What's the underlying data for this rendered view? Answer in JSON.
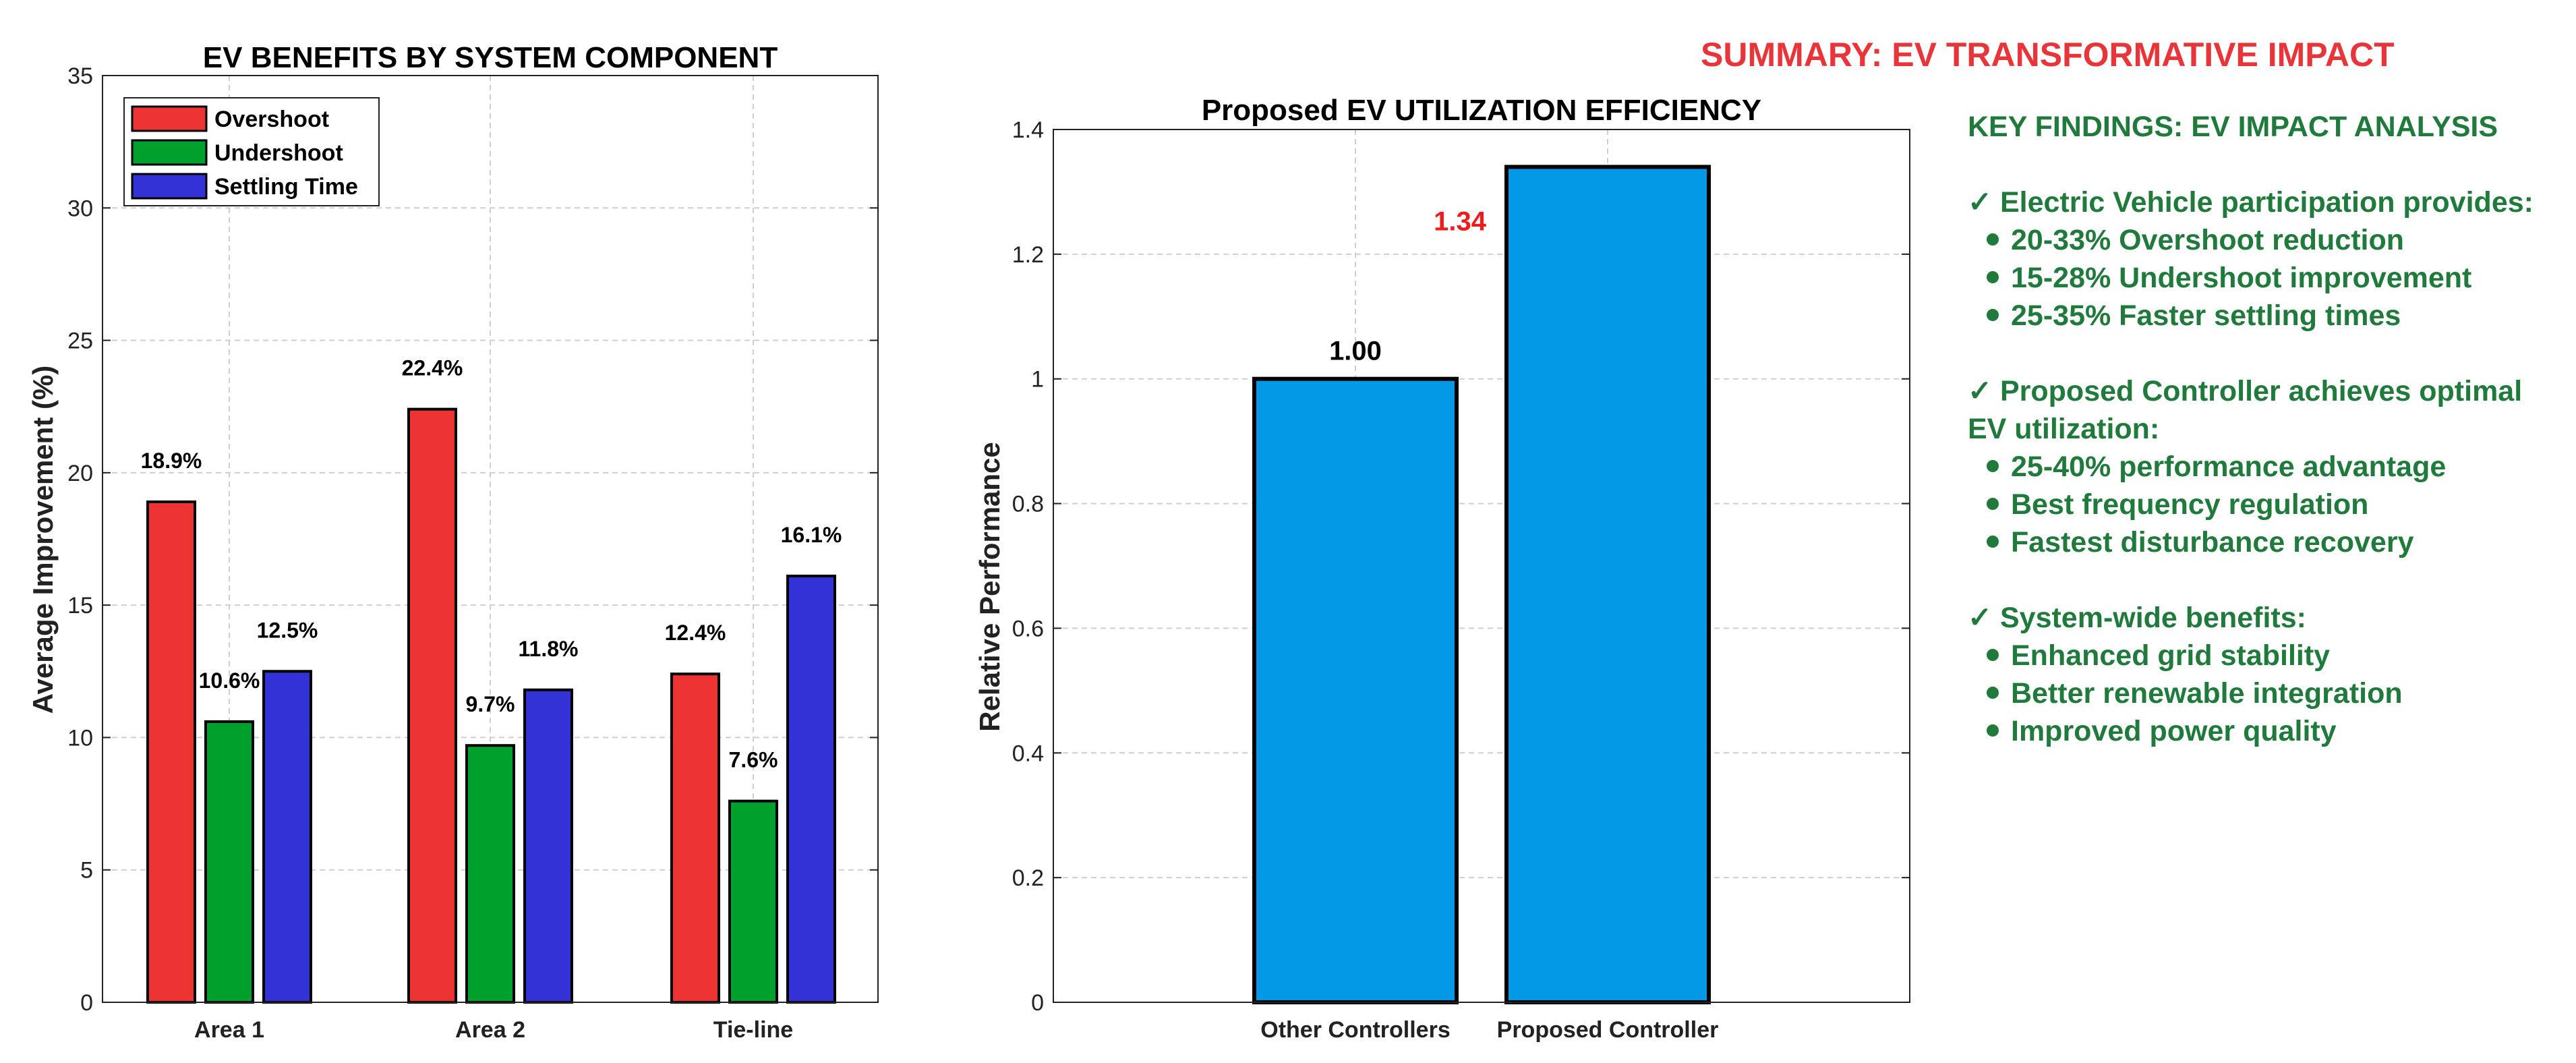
{
  "colors": {
    "overshoot": "#ee3333",
    "undershoot": "#00a02c",
    "settling": "#3232d6",
    "ev_bar": "#0499e6",
    "summary_red": "#e8353a",
    "findings_green": "#1f7a3b",
    "label_red": "#ee1c1c"
  },
  "chart_data": [
    {
      "type": "bar",
      "title": "EV BENEFITS BY SYSTEM COMPONENT",
      "xlabel": "",
      "ylabel": "Average Improvement (%)",
      "ylim": [
        0,
        35
      ],
      "yticks": [
        0,
        5,
        10,
        15,
        20,
        25,
        30,
        35
      ],
      "categories": [
        "Area 1",
        "Area 2",
        "Tie-line"
      ],
      "series": [
        {
          "name": "Overshoot",
          "values": [
            18.9,
            22.4,
            12.4
          ],
          "labels": [
            "18.9%",
            "22.4%",
            "12.4%"
          ]
        },
        {
          "name": "Undershoot",
          "values": [
            10.6,
            9.7,
            7.6
          ],
          "labels": [
            "10.6%",
            "9.7%",
            "7.6%"
          ]
        },
        {
          "name": "Settling Time",
          "values": [
            12.5,
            11.8,
            16.1
          ],
          "labels": [
            "12.5%",
            "11.8%",
            "16.1%"
          ]
        }
      ],
      "legend_position": "top-left",
      "grid": true
    },
    {
      "type": "bar",
      "title": "Proposed EV UTILIZATION EFFICIENCY",
      "xlabel": "",
      "ylabel": "Relative Performance",
      "ylim": [
        0,
        1.4
      ],
      "yticks": [
        "0",
        "0.2",
        "0.4",
        "0.6",
        "0.8",
        "1",
        "1.2",
        "1.4"
      ],
      "categories": [
        "Other Controllers",
        "Proposed Controller"
      ],
      "values": [
        1.0,
        1.34
      ],
      "labels": [
        "1.00",
        "1.34"
      ],
      "grid": true
    }
  ],
  "summary": {
    "title": "SUMMARY: EV TRANSFORMATIVE IMPACT",
    "heading": "KEY FINDINGS: EV IMPACT ANALYSIS",
    "groups": [
      {
        "lead": "✓ Electric Vehicle participation provides:",
        "bullets": [
          "20-33% Overshoot reduction",
          "15-28% Undershoot improvement",
          "25-35% Faster settling times"
        ]
      },
      {
        "lead": "✓ Proposed Controller  achieves optimal",
        "lead2": "EV utilization:",
        "bullets": [
          "25-40% performance advantage",
          "Best frequency regulation",
          "Fastest disturbance recovery"
        ]
      },
      {
        "lead": "✓ System-wide benefits:",
        "bullets": [
          "Enhanced grid stability",
          "Better renewable integration",
          "Improved power quality"
        ]
      }
    ]
  }
}
